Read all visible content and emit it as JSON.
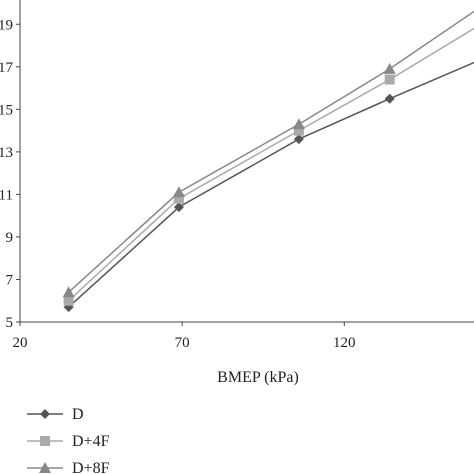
{
  "chart_data": {
    "type": "line",
    "title": "",
    "xlabel": "BMEP (kPa)",
    "ylabel": "",
    "xlim": [
      20,
      160
    ],
    "ylim": [
      5,
      20
    ],
    "xticks": [
      20,
      70,
      120
    ],
    "yticks": [
      5,
      7,
      9,
      11,
      13,
      15,
      17,
      19
    ],
    "grid": false,
    "legend_position": "bottom-left",
    "series": [
      {
        "name": "D",
        "marker": "diamond",
        "color": "#555555",
        "x": [
          35,
          69,
          106,
          134,
          160
        ],
        "y": [
          5.7,
          10.4,
          13.6,
          15.5,
          17.2
        ]
      },
      {
        "name": "D+4F",
        "marker": "square",
        "color": "#aaaaaa",
        "x": [
          35,
          69,
          106,
          134,
          160
        ],
        "y": [
          6.0,
          10.8,
          14.0,
          16.4,
          18.8
        ]
      },
      {
        "name": "D+8F",
        "marker": "triangle",
        "color": "#888888",
        "x": [
          35,
          69,
          106,
          134,
          160
        ],
        "y": [
          6.4,
          11.1,
          14.3,
          16.9,
          19.6
        ]
      }
    ]
  }
}
